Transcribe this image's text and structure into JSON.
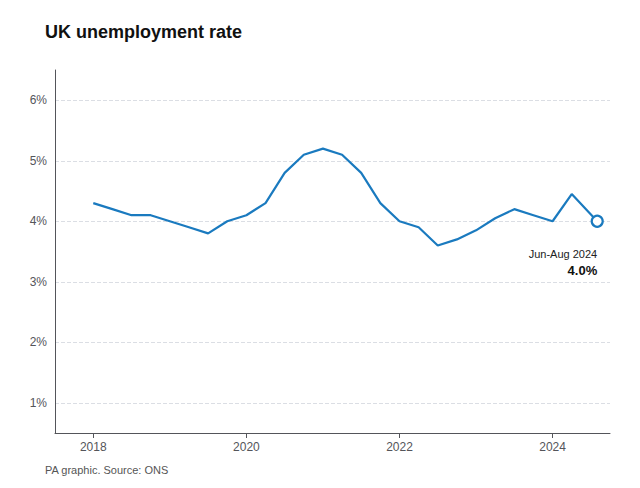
{
  "chart_data": {
    "type": "line",
    "title": "UK unemployment rate",
    "source": "PA graphic. Source: ONS",
    "color": "#1a7abf",
    "x": [
      2018.0,
      2018.25,
      2018.5,
      2018.75,
      2019.0,
      2019.25,
      2019.5,
      2019.75,
      2020.0,
      2020.25,
      2020.5,
      2020.75,
      2021.0,
      2021.25,
      2021.5,
      2021.75,
      2022.0,
      2022.25,
      2022.5,
      2022.75,
      2023.0,
      2023.25,
      2023.5,
      2023.75,
      2024.0,
      2024.25,
      2024.583
    ],
    "values": [
      4.3,
      4.2,
      4.1,
      4.1,
      4.0,
      3.9,
      3.8,
      4.0,
      4.1,
      4.3,
      4.8,
      5.1,
      5.2,
      5.1,
      4.8,
      4.3,
      4.0,
      3.9,
      3.6,
      3.7,
      3.85,
      4.05,
      4.2,
      4.1,
      4.0,
      4.45,
      4.0
    ],
    "xlim": [
      2017.5,
      2024.75
    ],
    "ylim": [
      0.5,
      6.5
    ],
    "xticks": [
      2018,
      2020,
      2022,
      2024
    ],
    "yticks": [
      {
        "value": 1,
        "label": "1%"
      },
      {
        "value": 2,
        "label": "2%"
      },
      {
        "value": 3,
        "label": "3%"
      },
      {
        "value": 4,
        "label": "4%"
      },
      {
        "value": 5,
        "label": "5%"
      },
      {
        "value": 6,
        "label": "6%"
      }
    ],
    "grid": true,
    "annotation": {
      "x": 2024.583,
      "y": 4.0,
      "label": "Jun-Aug 2024",
      "value_label": "4.0%"
    }
  }
}
